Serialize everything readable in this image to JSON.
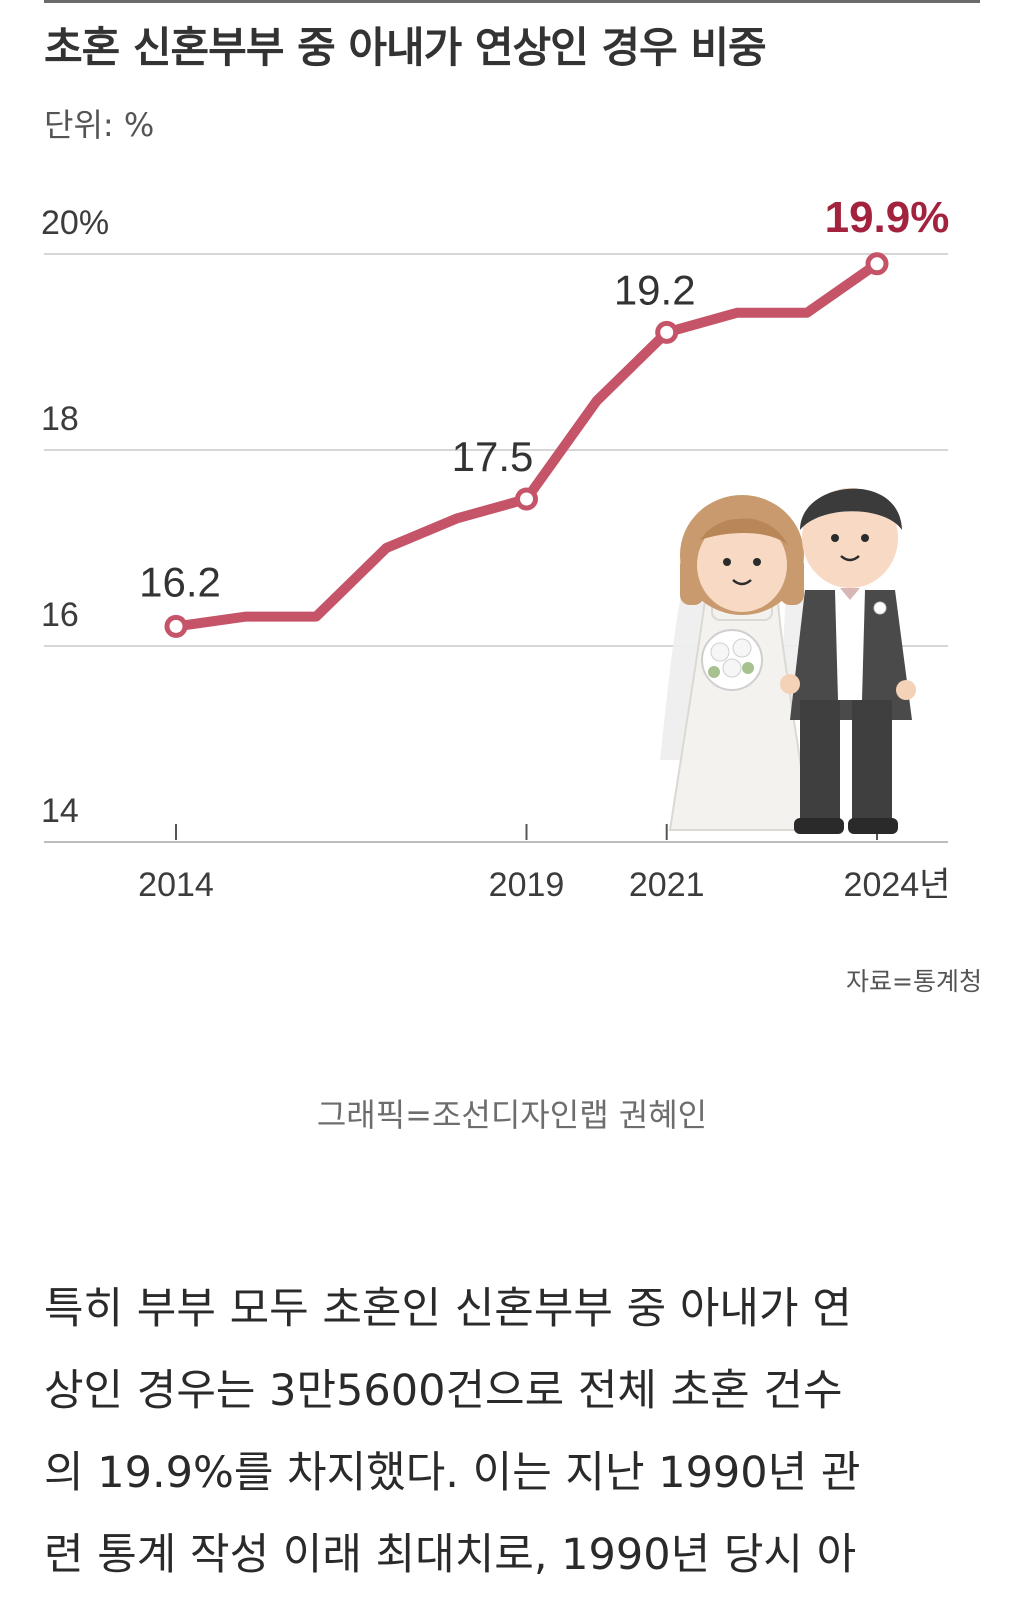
{
  "chart_data": {
    "type": "line",
    "title": "초혼 신혼부부 중 아내가 연상인 경우 비중",
    "unit": "단위: %",
    "ylim": [
      14,
      20
    ],
    "y_ticks": [
      "20%",
      "18",
      "16",
      "14"
    ],
    "y_tick_values": [
      20,
      18,
      16,
      14
    ],
    "x_tick_labels": [
      "2014",
      "2019",
      "2021",
      "2024년"
    ],
    "x_tick_years": [
      2014,
      2019,
      2021,
      2024
    ],
    "series": [
      {
        "x": [
          2014,
          2015,
          2016,
          2017,
          2018,
          2019,
          2020,
          2021,
          2022,
          2023,
          2024
        ],
        "values": [
          16.2,
          16.3,
          16.3,
          17.0,
          17.3,
          17.5,
          18.5,
          19.2,
          19.4,
          19.4,
          19.9
        ]
      }
    ],
    "labeled_points": [
      {
        "x": 2014,
        "y": 16.2,
        "label": "16.2"
      },
      {
        "x": 2019,
        "y": 17.5,
        "label": "17.5"
      },
      {
        "x": 2021,
        "y": 19.2,
        "label": "19.2"
      },
      {
        "x": 2024,
        "y": 19.9,
        "label": "19.9%"
      }
    ],
    "line_color": "#c65468",
    "highlight_color": "#a3233f",
    "grid": true,
    "source": "자료=통계청"
  },
  "credit": "그래픽=조선디자인랩 권혜인",
  "article": {
    "lines": [
      "특히 부부 모두 초혼인 신혼부부 중 아내가 연",
      "상인 경우는 3만5600건으로 전체 초혼 건수",
      "의 19.9%를 차지했다. 이는 지난 1990년 관",
      "련 통계 작성 이래 최대치로, 1990년 당시 아"
    ]
  }
}
